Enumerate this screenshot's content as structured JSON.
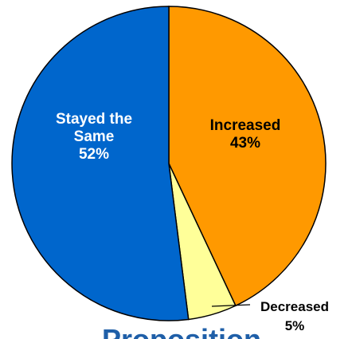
{
  "chart_data": {
    "type": "pie",
    "slices": [
      {
        "label_lines": [
          "Increased",
          "43%"
        ],
        "value": 43,
        "color": "#ff9900",
        "label_color": "#000000",
        "label_position": "inside"
      },
      {
        "label_lines": [
          "Decreased",
          "5%"
        ],
        "value": 5,
        "color": "#ffff99",
        "label_color": "#000000",
        "label_position": "outside"
      },
      {
        "label_lines": [
          "Stayed the",
          "Same",
          "52%"
        ],
        "value": 52,
        "color": "#0066cc",
        "label_color": "#ffffff",
        "label_position": "inside"
      }
    ],
    "start_angle_deg": 0,
    "direction": "clockwise",
    "legend": "none",
    "partial_text_below": "Proposition"
  }
}
